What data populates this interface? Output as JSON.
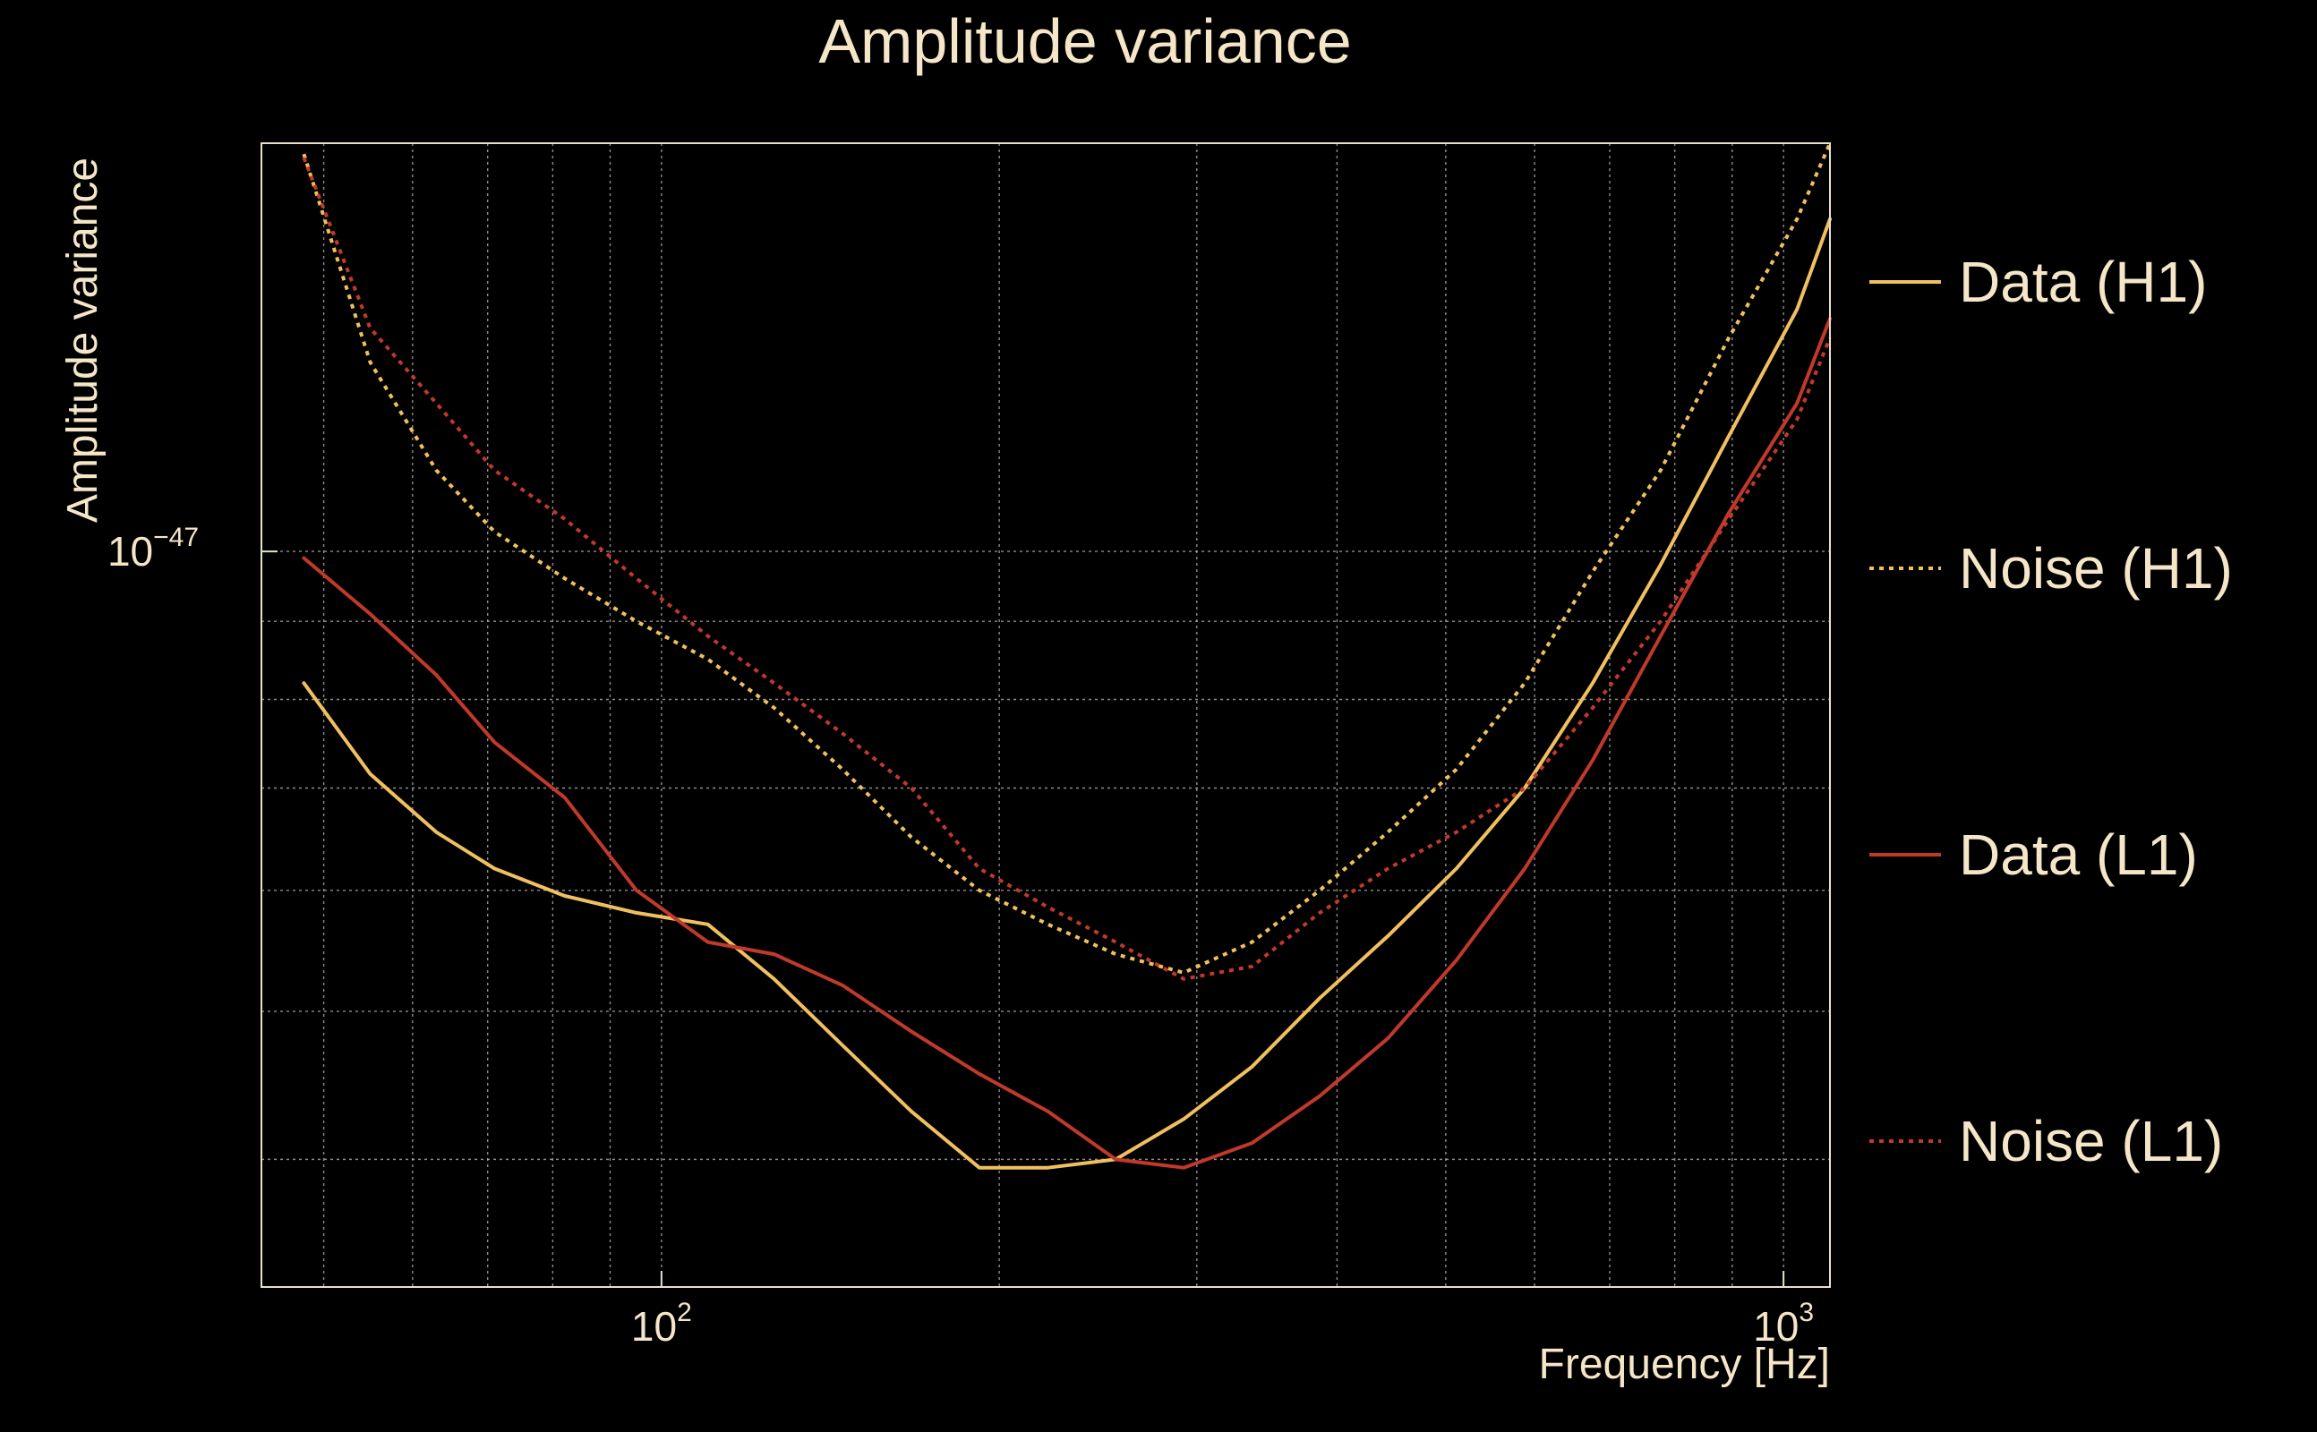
{
  "chart_data": {
    "type": "line",
    "title": "Amplitude variance",
    "xlabel": "Frequency [Hz]",
    "ylabel": "Amplitude variance",
    "xscale": "log",
    "yscale": "log",
    "xlim": [
      44,
      1100
    ],
    "ylim": [
      3.3e-48,
      1.85e-47
    ],
    "x_ticks": [
      {
        "base": "10",
        "exp": "2"
      },
      {
        "base": "10",
        "exp": "3"
      }
    ],
    "y_ticks": [
      {
        "base": "10",
        "exp": "−47"
      }
    ],
    "grid": true,
    "legend_position": "right",
    "x": [
      48,
      55,
      63,
      71,
      82,
      95,
      110,
      126,
      145,
      167,
      192,
      221,
      254,
      292,
      336,
      386,
      444,
      511,
      588,
      676,
      777,
      894,
      1028,
      1100
    ],
    "series": [
      {
        "name": "Data (H1)",
        "color": "#f0c060",
        "style": "solid",
        "values": [
          8.2e-48,
          7.15e-48,
          6.55e-48,
          6.2e-48,
          5.95e-48,
          5.8e-48,
          5.7e-48,
          5.25e-48,
          4.75e-48,
          4.3e-48,
          3.95e-48,
          3.95e-48,
          4e-48,
          4.25e-48,
          4.6e-48,
          5.1e-48,
          5.6e-48,
          6.2e-48,
          7e-48,
          8.2e-48,
          9.8e-48,
          1.19e-47,
          1.44e-47,
          1.65e-47
        ]
      },
      {
        "name": "Noise (H1)",
        "color": "#f0c060",
        "style": "dotted",
        "values": [
          1.82e-47,
          1.33e-47,
          1.13e-47,
          1.03e-47,
          9.6e-48,
          9e-48,
          8.5e-48,
          7.9e-48,
          7.2e-48,
          6.5e-48,
          6e-48,
          5.7e-48,
          5.45e-48,
          5.3e-48,
          5.55e-48,
          6e-48,
          6.55e-48,
          7.2e-48,
          8.2e-48,
          9.7e-48,
          1.13e-47,
          1.38e-47,
          1.65e-47,
          1.85e-47
        ]
      },
      {
        "name": "Data (L1)",
        "color": "#c0392b",
        "style": "solid",
        "values": [
          9.9e-48,
          9.1e-48,
          8.3e-48,
          7.5e-48,
          6.9e-48,
          6e-48,
          5.55e-48,
          5.45e-48,
          5.2e-48,
          4.85e-48,
          4.55e-48,
          4.3e-48,
          4e-48,
          3.95e-48,
          4.1e-48,
          4.4e-48,
          4.8e-48,
          5.4e-48,
          6.2e-48,
          7.3e-48,
          8.8e-48,
          1.06e-47,
          1.25e-47,
          1.42e-47
        ]
      },
      {
        "name": "Noise (L1)",
        "color": "#c0392b",
        "style": "dotted",
        "values": [
          1.81e-47,
          1.4e-47,
          1.25e-47,
          1.13e-47,
          1.05e-47,
          9.6e-48,
          8.8e-48,
          8.2e-48,
          7.6e-48,
          7e-48,
          6.2e-48,
          5.85e-48,
          5.55e-48,
          5.25e-48,
          5.35e-48,
          5.8e-48,
          6.2e-48,
          6.55e-48,
          7e-48,
          7.9e-48,
          9e-48,
          1.05e-47,
          1.22e-47,
          1.38e-47
        ]
      }
    ]
  }
}
